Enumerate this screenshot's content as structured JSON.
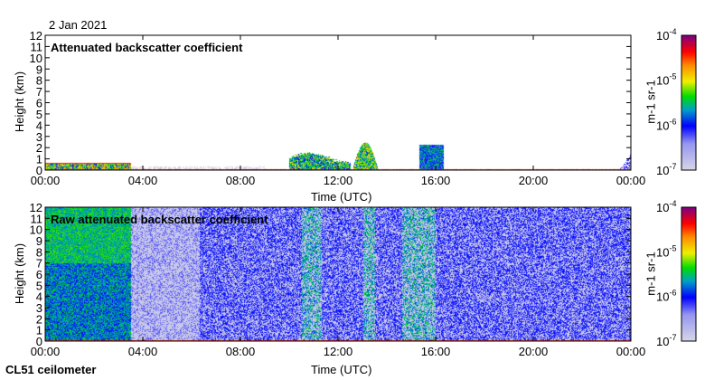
{
  "date_label": "2 Jan 2021",
  "instrument_label": "CL51 ceilometer",
  "colors": {
    "axis": "#000000",
    "background_fill": "#d8d8e8"
  },
  "chart_data": [
    {
      "type": "heatmap",
      "title": "Attenuated backscatter coefficient",
      "xlabel": "Time (UTC)",
      "ylabel": "Height (km)",
      "xlim": [
        0,
        24
      ],
      "ylim": [
        0,
        12
      ],
      "xticks": [
        "00:00",
        "04:00",
        "08:00",
        "12:00",
        "16:00",
        "20:00",
        "00:00"
      ],
      "yticks": [
        "0",
        "1",
        "2",
        "3",
        "4",
        "5",
        "6",
        "7",
        "8",
        "9",
        "10",
        "11",
        "12"
      ],
      "colorbar": {
        "label": "m-1 sr-1",
        "scale": "log",
        "range": [
          1e-07,
          0.0001
        ],
        "ticks": [
          "10-7",
          "10-6",
          "10-5",
          "10-4"
        ]
      },
      "features": [
        {
          "name": "aerosol layer",
          "time": [
            0,
            3.5
          ],
          "top_km": 0.6
        },
        {
          "name": "cloud",
          "time": [
            10,
            12.5
          ],
          "top_km": 1.5
        },
        {
          "name": "cloud",
          "time": [
            12.6,
            13.6
          ],
          "top_km": 2.3
        },
        {
          "name": "cloud",
          "time": [
            15.3,
            16.3
          ],
          "top_km": 2.4
        }
      ]
    },
    {
      "type": "heatmap",
      "title": "Raw attenuated backscatter coefficient",
      "xlabel": "Time (UTC)",
      "ylabel": "Height (km)",
      "xlim": [
        0,
        24
      ],
      "ylim": [
        0,
        12
      ],
      "xticks": [
        "00:00",
        "04:00",
        "08:00",
        "12:00",
        "16:00",
        "20:00",
        "00:00"
      ],
      "yticks": [
        "0",
        "1",
        "2",
        "3",
        "4",
        "5",
        "6",
        "7",
        "8",
        "9",
        "10",
        "11",
        "12"
      ],
      "colorbar": {
        "label": "m-1 sr-1",
        "scale": "log",
        "range": [
          1e-07,
          0.0001
        ],
        "ticks": [
          "10-7",
          "10-6",
          "10-5",
          "10-4"
        ]
      }
    }
  ]
}
